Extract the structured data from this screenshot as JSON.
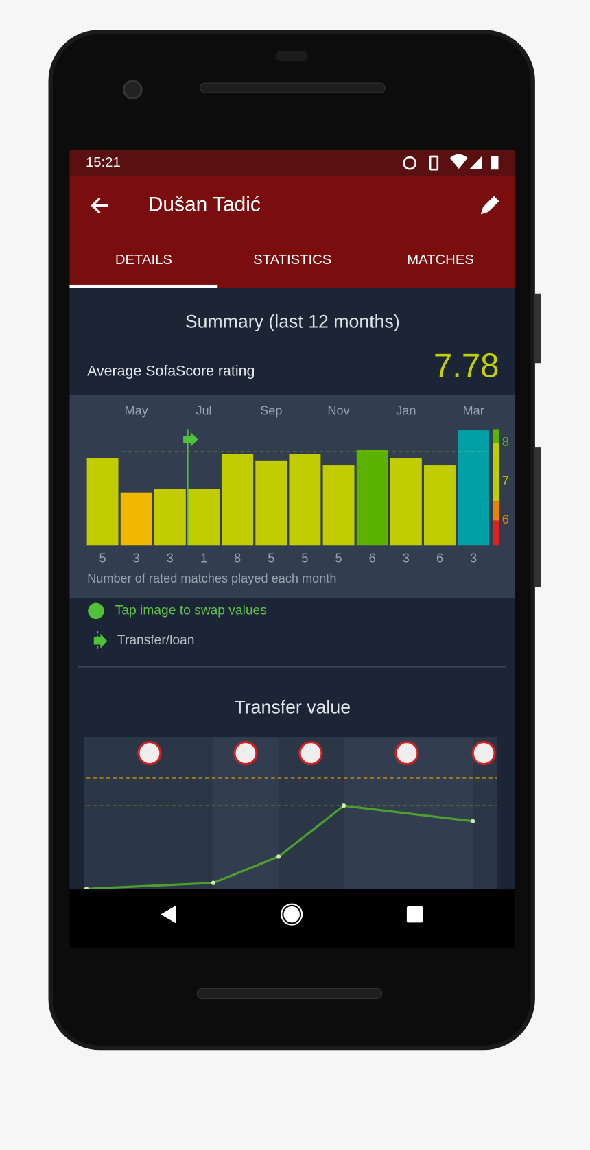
{
  "status_bar": {
    "time": "15:21"
  },
  "header": {
    "title": "Dušan Tadić"
  },
  "tabs": [
    "DETAILS",
    "STATISTICS",
    "MATCHES"
  ],
  "summary": {
    "title": "Summary (last 12 months)",
    "rating_label": "Average SofaScore rating",
    "rating": 7.78
  },
  "chart_data": [
    {
      "type": "bar",
      "categories": [
        null,
        "May",
        null,
        "Jul",
        null,
        "Sep",
        null,
        "Nov",
        null,
        "Jan",
        null,
        "Mar"
      ],
      "values": [
        7.61,
        6.72,
        6.81,
        6.81,
        7.72,
        7.53,
        7.72,
        7.42,
        7.81,
        7.61,
        7.42,
        8.32
      ],
      "colors": [
        "#c1cd00",
        "#f0b800",
        "#c1cd00",
        "#c1cd00",
        "#c1cd00",
        "#c1cd00",
        "#c1cd00",
        "#c1cd00",
        "#5bb300",
        "#c1cd00",
        "#c1cd00",
        "#00a0a6"
      ],
      "match_counts": [
        5,
        3,
        3,
        1,
        8,
        5,
        5,
        5,
        6,
        3,
        6,
        3
      ],
      "ylim": [
        5.35,
        8.35
      ],
      "yticks": [
        6,
        7,
        8
      ],
      "footnote": "Number of rated matches played each month"
    },
    {
      "type": "line",
      "title": "Transfer value",
      "values": [
        0,
        1.06,
        5.8,
        15,
        12.2
      ],
      "color": "#4e9f2d",
      "ylim": [
        0,
        20
      ],
      "reference_lines": [
        15,
        20
      ]
    }
  ],
  "legend": {
    "swap": "Tap image to swap values",
    "transfer": "Transfer/loan"
  }
}
